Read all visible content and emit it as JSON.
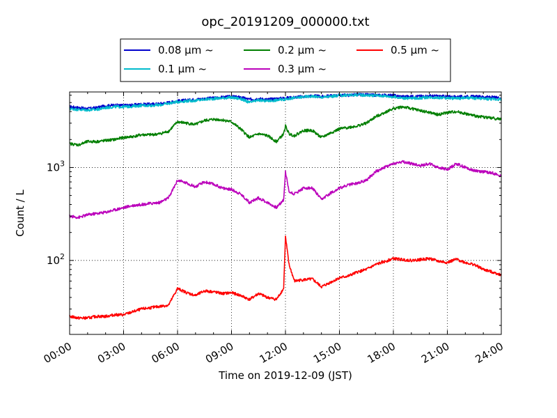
{
  "chart_data": {
    "type": "line",
    "title": "opc_20191209_000000.txt",
    "xlabel": "Time on 2019-12-09 (JST)",
    "ylabel": "Count / L",
    "x_unit": "hour",
    "xlim": [
      0,
      24
    ],
    "ylim": [
      16,
      6500
    ],
    "yscale": "log",
    "grid": true,
    "legend_position": "top",
    "x_ticks": [
      {
        "value": 0,
        "label": "00:00"
      },
      {
        "value": 3,
        "label": "03:00"
      },
      {
        "value": 6,
        "label": "06:00"
      },
      {
        "value": 9,
        "label": "09:00"
      },
      {
        "value": 12,
        "label": "12:00"
      },
      {
        "value": 15,
        "label": "15:00"
      },
      {
        "value": 18,
        "label": "18:00"
      },
      {
        "value": 21,
        "label": "21:00"
      },
      {
        "value": 24,
        "label": "24:00"
      }
    ],
    "y_ticks": [
      {
        "value": 100,
        "base": "10",
        "exp": "2"
      },
      {
        "value": 1000,
        "base": "10",
        "exp": "3"
      }
    ],
    "series": [
      {
        "name": "0.08 μm ~",
        "color": "#0000cc",
        "x": [
          0,
          0.5,
          1,
          1.5,
          2,
          2.5,
          3,
          3.5,
          4,
          4.5,
          5,
          5.5,
          6,
          6.5,
          7,
          7.5,
          8,
          8.5,
          9,
          9.5,
          10,
          10.5,
          11,
          11.5,
          12,
          12.5,
          13,
          13.5,
          14,
          14.5,
          15,
          15.5,
          16,
          16.5,
          17,
          17.5,
          18,
          18.5,
          19,
          19.5,
          20,
          20.5,
          21,
          21.5,
          22,
          22.5,
          23,
          23.5,
          24
        ],
        "y": [
          4500,
          4400,
          4300,
          4400,
          4600,
          4700,
          4650,
          4700,
          4800,
          4800,
          4850,
          5000,
          5200,
          5300,
          5400,
          5500,
          5600,
          5700,
          5800,
          5700,
          5400,
          5500,
          5400,
          5500,
          5600,
          5700,
          5800,
          5900,
          5800,
          5900,
          6000,
          6000,
          6100,
          6050,
          6000,
          6000,
          5950,
          5800,
          5800,
          5850,
          5900,
          5850,
          5800,
          5750,
          5800,
          5800,
          5750,
          5700,
          5600
        ]
      },
      {
        "name": "0.1 μm ~",
        "color": "#00bbcc",
        "x": [
          0,
          0.5,
          1,
          1.5,
          2,
          2.5,
          3,
          3.5,
          4,
          4.5,
          5,
          5.5,
          6,
          6.5,
          7,
          7.5,
          8,
          8.5,
          9,
          9.5,
          10,
          10.5,
          11,
          11.5,
          12,
          12.5,
          13,
          13.5,
          14,
          14.5,
          15,
          15.5,
          16,
          16.5,
          17,
          17.5,
          18,
          18.5,
          19,
          19.5,
          20,
          20.5,
          21,
          21.5,
          22,
          22.5,
          23,
          23.5,
          24
        ],
        "y": [
          4300,
          4200,
          4150,
          4200,
          4400,
          4500,
          4500,
          4550,
          4650,
          4650,
          4700,
          4900,
          5100,
          5200,
          5250,
          5400,
          5500,
          5600,
          5650,
          5500,
          5000,
          5300,
          5200,
          5300,
          5450,
          5600,
          5750,
          5850,
          5700,
          5800,
          5950,
          6000,
          6050,
          6000,
          5950,
          5900,
          5750,
          5600,
          5550,
          5600,
          5700,
          5650,
          5600,
          5550,
          5600,
          5550,
          5500,
          5450,
          5400
        ]
      },
      {
        "name": "0.2 μm ~",
        "color": "#007f00",
        "x": [
          0,
          0.5,
          1,
          1.5,
          2,
          2.5,
          3,
          3.5,
          4,
          4.5,
          5,
          5.5,
          6,
          6.5,
          7,
          7.5,
          8,
          8.5,
          9,
          9.5,
          10,
          10.5,
          11,
          11.5,
          11.9,
          12,
          12.2,
          12.5,
          13,
          13.5,
          14,
          14.5,
          15,
          15.5,
          16,
          16.5,
          17,
          17.5,
          18,
          18.5,
          19,
          19.5,
          20,
          20.5,
          21,
          21.5,
          22,
          22.5,
          23,
          23.5,
          24
        ],
        "y": [
          1800,
          1750,
          1900,
          1900,
          1950,
          2000,
          2100,
          2150,
          2250,
          2250,
          2300,
          2450,
          3100,
          3000,
          2900,
          3200,
          3300,
          3250,
          3100,
          2600,
          2100,
          2300,
          2200,
          1900,
          2300,
          2800,
          2300,
          2200,
          2500,
          2500,
          2100,
          2350,
          2600,
          2700,
          2800,
          3000,
          3500,
          3900,
          4300,
          4500,
          4300,
          4100,
          3900,
          3700,
          3900,
          4000,
          3800,
          3600,
          3500,
          3400,
          3300
        ]
      },
      {
        "name": "0.3 μm ~",
        "color": "#bb00bb",
        "x": [
          0,
          0.5,
          1,
          1.5,
          2,
          2.5,
          3,
          3.5,
          4,
          4.5,
          5,
          5.5,
          6,
          6.5,
          7,
          7.5,
          8,
          8.5,
          9,
          9.5,
          10,
          10.5,
          11,
          11.5,
          11.9,
          12,
          12.2,
          12.5,
          13,
          13.5,
          14,
          14.5,
          15,
          15.5,
          16,
          16.5,
          17,
          17.5,
          18,
          18.5,
          19,
          19.5,
          20,
          20.5,
          21,
          21.5,
          22,
          22.5,
          23,
          23.5,
          24
        ],
        "y": [
          300,
          290,
          310,
          320,
          330,
          350,
          370,
          390,
          400,
          410,
          420,
          470,
          730,
          680,
          620,
          700,
          660,
          600,
          580,
          520,
          420,
          470,
          420,
          370,
          450,
          900,
          550,
          520,
          600,
          600,
          450,
          530,
          600,
          650,
          680,
          730,
          900,
          1000,
          1100,
          1150,
          1100,
          1050,
          1100,
          1000,
          950,
          1100,
          1000,
          930,
          900,
          880,
          800
        ]
      },
      {
        "name": "0.5 μm ~",
        "color": "#ff0000",
        "x": [
          0,
          0.5,
          1,
          1.5,
          2,
          2.5,
          3,
          3.5,
          4,
          4.5,
          5,
          5.5,
          6,
          6.5,
          7,
          7.5,
          8,
          8.5,
          9,
          9.5,
          10,
          10.5,
          11,
          11.5,
          11.9,
          12,
          12.2,
          12.5,
          13,
          13.5,
          14,
          14.5,
          15,
          15.5,
          16,
          16.5,
          17,
          17.5,
          18,
          18.5,
          19,
          19.5,
          20,
          20.5,
          21,
          21.5,
          22,
          22.5,
          23,
          23.5,
          24
        ],
        "y": [
          25,
          24,
          24,
          25,
          25,
          26,
          26,
          28,
          30,
          31,
          32,
          33,
          50,
          45,
          42,
          47,
          46,
          44,
          45,
          42,
          38,
          44,
          40,
          38,
          50,
          180,
          90,
          60,
          62,
          63,
          52,
          58,
          65,
          68,
          75,
          80,
          90,
          97,
          105,
          102,
          100,
          102,
          105,
          98,
          95,
          103,
          95,
          90,
          80,
          75,
          70
        ]
      }
    ]
  }
}
